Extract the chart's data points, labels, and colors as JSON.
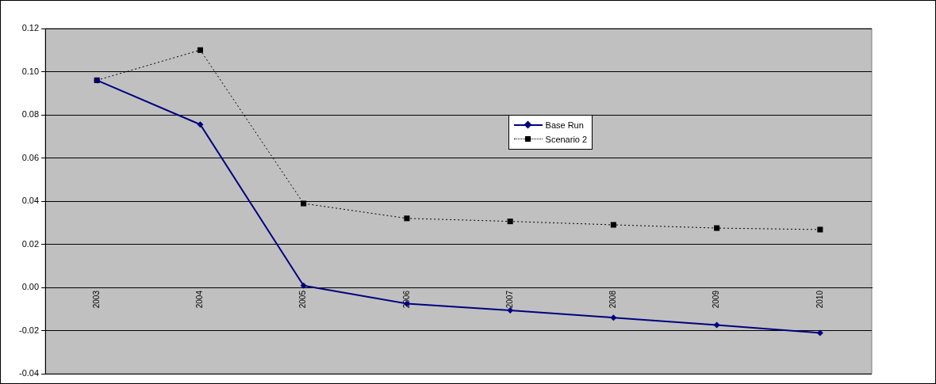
{
  "chart_data": {
    "type": "line",
    "categories": [
      "2003",
      "2004",
      "2005",
      "2006",
      "2007",
      "2008",
      "2009",
      "2010"
    ],
    "series": [
      {
        "name": "Base Run",
        "color": "#000080",
        "marker": "diamond",
        "line_style": "solid",
        "values": [
          0.096,
          0.0755,
          0.0008,
          -0.0075,
          -0.0106,
          -0.014,
          -0.0174,
          -0.0211
        ]
      },
      {
        "name": "Scenario 2",
        "color": "#000000",
        "marker": "square",
        "line_style": "dotted",
        "values": [
          0.096,
          0.11,
          0.0389,
          0.032,
          0.0306,
          0.029,
          0.0275,
          0.0268
        ]
      }
    ],
    "ylim": [
      -0.04,
      0.12
    ],
    "yticks": [
      {
        "value": -0.04,
        "label": "-0.04"
      },
      {
        "value": -0.02,
        "label": "-0.02"
      },
      {
        "value": 0,
        "label": "0.00"
      },
      {
        "value": 0.02,
        "label": "0.02"
      },
      {
        "value": 0.04,
        "label": "0.04"
      },
      {
        "value": 0.06,
        "label": "0.06"
      },
      {
        "value": 0.08,
        "label": "0.08"
      },
      {
        "value": 0.1,
        "label": "0.10"
      },
      {
        "value": 0.12,
        "label": "0.12"
      }
    ],
    "grid": "y",
    "legend": "top"
  }
}
